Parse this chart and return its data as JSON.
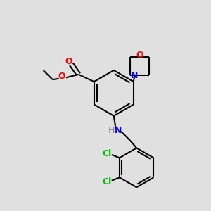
{
  "bg_color": "#e0e0e0",
  "bond_color": "#000000",
  "N_color": "#0000ff",
  "O_color": "#ff0000",
  "Cl_color": "#00bb00",
  "line_width": 1.5,
  "figsize": [
    3.0,
    3.0
  ],
  "dpi": 100,
  "xlim": [
    0,
    10
  ],
  "ylim": [
    0,
    10
  ]
}
